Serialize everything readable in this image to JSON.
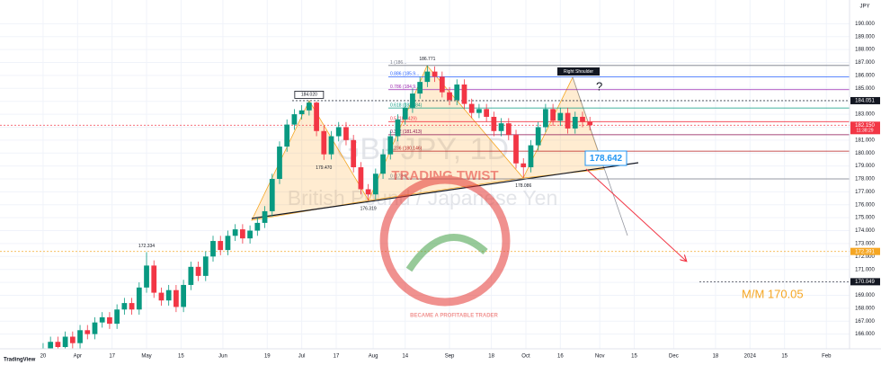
{
  "chart_data": {
    "type": "candlestick",
    "title": "GBPJPY, 1D",
    "subtitle": "British Pound / Japanese Yen",
    "currency": "JPY",
    "branding": "TradingView",
    "colors": {
      "up": "#089981",
      "down": "#f23645"
    },
    "x": [
      0,
      3,
      6,
      9,
      12,
      15,
      18,
      21,
      24,
      27,
      30,
      33,
      36,
      39,
      42,
      45,
      48,
      51,
      54,
      57,
      60,
      63,
      66,
      69,
      72,
      75,
      78,
      81,
      84,
      87,
      90,
      93,
      96,
      99,
      102,
      105,
      108,
      111,
      114,
      117,
      120,
      123,
      126,
      129,
      132,
      135,
      138,
      141,
      144,
      147,
      150,
      153,
      156,
      159,
      162,
      165,
      168,
      171,
      174,
      177,
      180,
      183,
      186,
      189,
      192,
      195,
      198,
      201,
      204,
      207,
      210,
      213,
      216,
      219,
      222
    ],
    "open": [
      164.5,
      164.9,
      165.4,
      165.0,
      165.8,
      165.3,
      166.3,
      166.0,
      166.9,
      167.3,
      166.8,
      167.9,
      168.4,
      167.9,
      169.6,
      171.3,
      169.2,
      168.6,
      169.4,
      168.1,
      169.8,
      171.2,
      170.5,
      172.0,
      173.2,
      172.5,
      173.6,
      174.1,
      173.4,
      174.0,
      174.6,
      175.5,
      178.0,
      180.5,
      182.2,
      183.0,
      183.3,
      183.9,
      181.7,
      179.9,
      181.3,
      182.0,
      181.0,
      178.9,
      177.2,
      176.8,
      178.4,
      179.9,
      181.3,
      182.6,
      183.5,
      184.6,
      185.5,
      186.3,
      185.9,
      184.7,
      184.1,
      185.3,
      183.8,
      183.1,
      183.4,
      182.8,
      181.7,
      182.3,
      181.4,
      179.2,
      178.9,
      180.6,
      182.0,
      183.4,
      182.5,
      183.1,
      181.9,
      182.8,
      182.4
    ],
    "high": [
      165.3,
      165.8,
      165.8,
      166.2,
      166.2,
      166.7,
      166.7,
      167.3,
      167.7,
      167.7,
      168.3,
      168.8,
      168.8,
      170.0,
      172.334,
      171.7,
      169.6,
      169.8,
      169.8,
      170.2,
      171.6,
      171.6,
      172.4,
      173.6,
      173.6,
      174.0,
      174.5,
      174.5,
      174.4,
      175.0,
      175.9,
      178.4,
      180.9,
      182.6,
      183.4,
      183.7,
      184.02,
      184.0,
      182.1,
      181.7,
      182.4,
      182.4,
      181.4,
      179.3,
      177.6,
      178.8,
      180.3,
      181.7,
      183.0,
      183.9,
      185.0,
      185.9,
      186.771,
      186.7,
      186.3,
      185.1,
      185.7,
      185.7,
      184.2,
      183.8,
      183.8,
      183.2,
      182.7,
      182.7,
      181.8,
      179.6,
      181.0,
      182.4,
      183.8,
      183.8,
      183.5,
      183.5,
      183.2,
      183.2,
      182.8
    ],
    "low": [
      164.1,
      164.5,
      164.6,
      164.6,
      164.9,
      164.9,
      165.6,
      165.6,
      166.5,
      166.4,
      166.4,
      167.5,
      167.5,
      167.5,
      169.2,
      168.8,
      168.2,
      168.2,
      167.7,
      167.7,
      169.4,
      170.1,
      170.1,
      171.6,
      172.1,
      172.1,
      173.2,
      173.0,
      173.0,
      173.6,
      174.2,
      175.1,
      177.6,
      180.1,
      181.8,
      182.6,
      182.9,
      181.3,
      179.47,
      179.5,
      180.9,
      180.6,
      178.5,
      176.8,
      176.319,
      176.4,
      178.0,
      179.5,
      180.9,
      182.2,
      183.1,
      184.2,
      185.1,
      185.5,
      184.3,
      183.7,
      183.7,
      183.4,
      182.7,
      182.7,
      182.4,
      181.3,
      181.3,
      181.0,
      178.8,
      178.086,
      178.5,
      180.2,
      181.6,
      182.1,
      182.1,
      181.5,
      181.5,
      182.0,
      181.75
    ],
    "close": [
      164.9,
      165.4,
      165.0,
      165.8,
      165.3,
      166.3,
      166.0,
      166.9,
      167.3,
      166.8,
      167.9,
      168.4,
      167.9,
      169.6,
      171.3,
      169.2,
      168.6,
      169.4,
      168.1,
      169.8,
      171.2,
      170.5,
      172.0,
      173.2,
      172.5,
      173.6,
      174.1,
      173.4,
      174.0,
      174.6,
      175.5,
      178.0,
      180.5,
      182.2,
      183.0,
      183.3,
      183.9,
      181.7,
      179.9,
      181.3,
      182.0,
      181.0,
      178.9,
      177.2,
      176.8,
      178.4,
      179.9,
      181.3,
      182.6,
      183.5,
      184.6,
      185.5,
      186.3,
      185.9,
      184.7,
      184.1,
      185.3,
      183.8,
      183.1,
      183.4,
      182.8,
      181.7,
      182.3,
      181.4,
      179.2,
      178.9,
      180.6,
      182.0,
      183.4,
      182.5,
      183.1,
      181.9,
      182.8,
      182.4,
      182.15
    ],
    "xlim": [
      -17.5,
      327.4
    ],
    "xticks": [
      {
        "value": 0,
        "label": "20"
      },
      {
        "value": 14,
        "label": "Apr"
      },
      {
        "value": 28,
        "label": "17"
      },
      {
        "value": 42,
        "label": "May"
      },
      {
        "value": 56,
        "label": "15"
      },
      {
        "value": 73,
        "label": "Jun"
      },
      {
        "value": 91,
        "label": "19"
      },
      {
        "value": 105,
        "label": "Jul"
      },
      {
        "value": 119,
        "label": "17"
      },
      {
        "value": 134,
        "label": "Aug"
      },
      {
        "value": 147,
        "label": "14"
      },
      {
        "value": 165,
        "label": "Sep"
      },
      {
        "value": 182,
        "label": "18"
      },
      {
        "value": 196,
        "label": "Oct"
      },
      {
        "value": 210,
        "label": "16"
      },
      {
        "value": 226,
        "label": "Nov"
      },
      {
        "value": 240,
        "label": "15"
      },
      {
        "value": 256,
        "label": "Dec"
      },
      {
        "value": 273,
        "label": "18"
      },
      {
        "value": 287,
        "label": "2024"
      },
      {
        "value": 301,
        "label": "15"
      },
      {
        "value": 318,
        "label": "Feb"
      }
    ],
    "ylim": [
      165,
      191
    ],
    "yticks": [
      {
        "value": 166,
        "label": "166.000"
      },
      {
        "value": 167,
        "label": "167.000"
      },
      {
        "value": 168,
        "label": "168.000"
      },
      {
        "value": 169,
        "label": "169.000"
      },
      {
        "value": 170,
        "label": "170.000"
      },
      {
        "value": 171,
        "label": "171.000"
      },
      {
        "value": 172,
        "label": "172.000"
      },
      {
        "value": 173,
        "label": "173.000"
      },
      {
        "value": 174,
        "label": "174.000"
      },
      {
        "value": 175,
        "label": "175.000"
      },
      {
        "value": 176,
        "label": "176.000"
      },
      {
        "value": 177,
        "label": "177.000"
      },
      {
        "value": 178,
        "label": "178.000"
      },
      {
        "value": 179,
        "label": "179.000"
      },
      {
        "value": 180,
        "label": "180.000"
      },
      {
        "value": 181,
        "label": "181.000"
      },
      {
        "value": 182,
        "label": "182.000"
      },
      {
        "value": 183,
        "label": "183.000"
      },
      {
        "value": 184,
        "label": "184.000"
      },
      {
        "value": 185,
        "label": "185.000"
      },
      {
        "value": 186,
        "label": "186.000"
      },
      {
        "value": 187,
        "label": "187.000"
      },
      {
        "value": 188,
        "label": "188.000"
      },
      {
        "value": 189,
        "label": "189.000"
      },
      {
        "value": 190,
        "label": "190.000"
      }
    ],
    "grid": true,
    "pivots": [
      {
        "x": 42,
        "value": 172.334,
        "label": "172.334"
      },
      {
        "x": 108,
        "value": 184.02,
        "label": "184.020"
      },
      {
        "x": 114,
        "value": 179.47,
        "label": "179.470"
      },
      {
        "x": 132,
        "value": 176.319,
        "label": "176.319"
      },
      {
        "x": 156,
        "value": 186.771,
        "label": "186.771"
      },
      {
        "x": 195,
        "value": 178.086,
        "label": "178.086"
      }
    ],
    "fib_levels": [
      {
        "value": 186.771,
        "label": "1 (186...",
        "color": "#787b86"
      },
      {
        "value": 185.9,
        "label": "0.886 (185.9...",
        "color": "#2962ff"
      },
      {
        "value": 184.9,
        "label": "0.786 (184.9...",
        "color": "#9c27b0"
      },
      {
        "value": 183.484,
        "label": "0.618 (183.484)",
        "color": "#089981"
      },
      {
        "value": 182.429,
        "label": "0.5 (182.429)",
        "color": "#f23645"
      },
      {
        "value": 181.413,
        "label": "0.382 (181.413)",
        "color": "#880e4f"
      },
      {
        "value": 180.146,
        "label": "0.236 (180.146)",
        "color": "#b71c1c"
      },
      {
        "value": 178.0,
        "label": "0 (178.0...",
        "color": "#787b86"
      }
    ],
    "price_levels": [
      {
        "value": 184.051,
        "label": "184.051",
        "color": "#131722"
      },
      {
        "value": 182.15,
        "label": "182.150",
        "color": "#f23645",
        "countdown": "11:38:29"
      },
      {
        "value": 172.391,
        "label": "172.391",
        "color": "#f5a623"
      },
      {
        "value": 170.049,
        "label": "170.049",
        "color": "#131722"
      }
    ],
    "annotations": {
      "right_shoulder": "Right Shoulder",
      "question": "?",
      "breakout": "178.642",
      "target": "M/M 170.05"
    },
    "logo": {
      "name": "TRADING TWIST",
      "tagline": "BECAME A PROFITABLE TRADER"
    }
  }
}
